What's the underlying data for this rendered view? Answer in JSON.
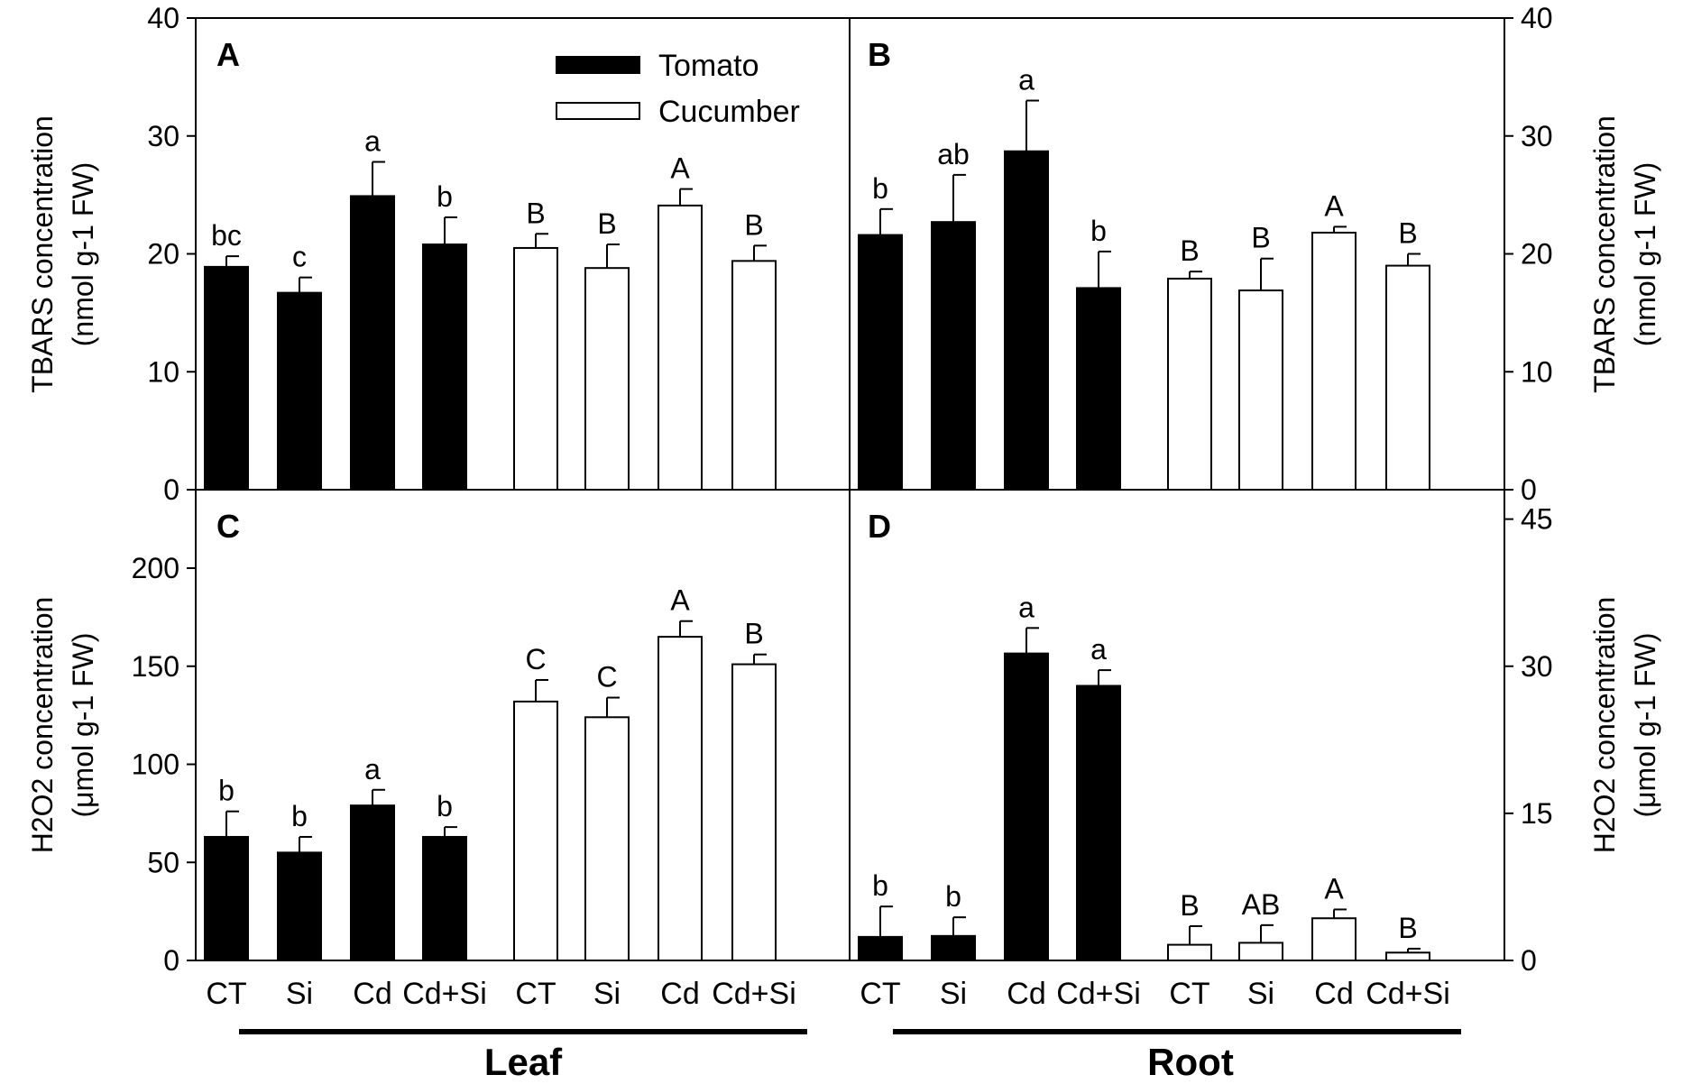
{
  "chart_data": [
    {
      "panel": "A",
      "type": "bar",
      "categories": [
        "CT",
        "Si",
        "Cd",
        "Cd+Si"
      ],
      "series": [
        {
          "name": "Tomato",
          "values": [
            18.9,
            16.7,
            24.9,
            20.8
          ],
          "errors": [
            0.9,
            1.3,
            2.9,
            2.3
          ],
          "letters": [
            "bc",
            "c",
            "a",
            "b"
          ]
        },
        {
          "name": "Cucumber",
          "values": [
            20.5,
            18.8,
            24.1,
            19.4
          ],
          "errors": [
            1.2,
            2.0,
            1.4,
            1.3
          ],
          "letters": [
            "B",
            "B",
            "A",
            "B"
          ]
        }
      ],
      "ylim": [
        0,
        40
      ],
      "yticks": [
        "0",
        "10",
        "20",
        "30",
        "40"
      ],
      "ylabel": "TBARS concentration",
      "ylabel_unit": "(nmol g-1 FW)"
    },
    {
      "panel": "B",
      "type": "bar",
      "categories": [
        "CT",
        "Si",
        "Cd",
        "Cd+Si"
      ],
      "series": [
        {
          "name": "Tomato",
          "values": [
            21.6,
            22.7,
            28.7,
            17.1
          ],
          "errors": [
            2.2,
            4.0,
            4.3,
            3.1
          ],
          "letters": [
            "b",
            "ab",
            "a",
            "b"
          ]
        },
        {
          "name": "Cucumber",
          "values": [
            17.9,
            16.9,
            21.8,
            19.0
          ],
          "errors": [
            0.6,
            2.7,
            0.5,
            1.0
          ],
          "letters": [
            "B",
            "B",
            "A",
            "B"
          ]
        }
      ],
      "ylim": [
        0,
        40
      ],
      "yticks": [
        "0",
        "10",
        "20",
        "30",
        "40"
      ],
      "ylabel": "TBARS concentration",
      "ylabel_unit": "(nmol g-1 FW)"
    },
    {
      "panel": "C",
      "type": "bar",
      "categories": [
        "CT",
        "Si",
        "Cd",
        "Cd+Si"
      ],
      "series": [
        {
          "name": "Tomato",
          "values": [
            63,
            55,
            79,
            63
          ],
          "errors": [
            13,
            8,
            8,
            5
          ],
          "letters": [
            "b",
            "b",
            "a",
            "b"
          ]
        },
        {
          "name": "Cucumber",
          "values": [
            132,
            124,
            165,
            151
          ],
          "errors": [
            11,
            10,
            8,
            5
          ],
          "letters": [
            "C",
            "C",
            "A",
            "B"
          ]
        }
      ],
      "ylim": [
        0,
        240
      ],
      "yticks": [
        "0",
        "50",
        "100",
        "150",
        "200"
      ],
      "ylabel": "H2O2 concentration",
      "ylabel_unit": "(μmol g-1 FW)"
    },
    {
      "panel": "D",
      "type": "bar",
      "categories": [
        "CT",
        "Si",
        "Cd",
        "Cd+Si"
      ],
      "series": [
        {
          "name": "Tomato",
          "values": [
            2.4,
            2.5,
            31.3,
            28.0
          ],
          "errors": [
            3.1,
            1.9,
            2.6,
            1.6
          ],
          "letters": [
            "b",
            "b",
            "a",
            "a"
          ]
        },
        {
          "name": "Cucumber",
          "values": [
            1.6,
            1.8,
            4.3,
            0.8
          ],
          "errors": [
            1.9,
            1.8,
            0.9,
            0.4
          ],
          "letters": [
            "B",
            "AB",
            "A",
            "B"
          ]
        }
      ],
      "ylim": [
        0,
        48
      ],
      "yticks": [
        "0",
        "15",
        "30",
        "45"
      ],
      "ylabel": "H2O2 concentration",
      "ylabel_unit": "(μmol g-1 FW)"
    }
  ],
  "legend": {
    "tomato": "Tomato",
    "cucumber": "Cucumber"
  },
  "groups": {
    "left": "Leaf",
    "right": "Root"
  },
  "colors": {
    "tomato": "#000000",
    "cucumber": "#ffffff",
    "axis": "#000000"
  }
}
